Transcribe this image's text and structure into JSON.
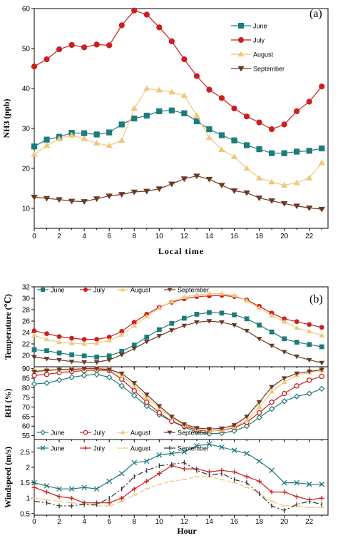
{
  "figure": {
    "panel_a_tag": "(a)",
    "panel_b_tag": "(b)"
  },
  "chart_data": [
    {
      "id": "a",
      "type": "line",
      "xlabel": "Local time",
      "ylabel": "NH3 (ppb)",
      "xlim": [
        0,
        23.5
      ],
      "ylim": [
        5,
        60
      ],
      "xticks": [
        0,
        2,
        4,
        6,
        8,
        10,
        12,
        14,
        16,
        18,
        20,
        22
      ],
      "yticks": [
        10,
        20,
        30,
        40,
        50,
        60
      ],
      "legend_position": "top-right",
      "x": [
        0,
        1,
        2,
        3,
        4,
        5,
        6,
        7,
        8,
        9,
        10,
        11,
        12,
        13,
        14,
        15,
        16,
        17,
        18,
        19,
        20,
        21,
        22,
        23
      ],
      "series": [
        {
          "name": "June",
          "color": "#1e7b7b",
          "marker": "square",
          "values": [
            25.5,
            27.2,
            27.9,
            28.9,
            28.8,
            28.5,
            29.0,
            31.0,
            32.5,
            33.2,
            34.3,
            34.5,
            33.8,
            31.8,
            29.8,
            28.3,
            27.0,
            25.8,
            24.8,
            23.8,
            23.8,
            24.2,
            24.4,
            25.0
          ]
        },
        {
          "name": "July",
          "color": "#cc1f1f",
          "marker": "circle",
          "values": [
            45.5,
            47.3,
            49.8,
            50.9,
            50.3,
            51.0,
            50.8,
            55.8,
            59.5,
            58.5,
            55.3,
            51.8,
            47.3,
            43.1,
            39.7,
            37.6,
            35.0,
            33.0,
            31.5,
            29.8,
            31.0,
            34.3,
            36.7,
            40.5
          ]
        },
        {
          "name": "August",
          "color": "#f0c87a",
          "marker": "triangle-up",
          "values": [
            23.5,
            25.7,
            27.4,
            28.3,
            27.4,
            26.3,
            25.7,
            27.0,
            35.0,
            40.0,
            39.6,
            39.1,
            38.2,
            33.3,
            27.7,
            24.7,
            22.9,
            20.0,
            17.6,
            16.6,
            15.8,
            16.4,
            17.6,
            21.4
          ]
        },
        {
          "name": "September",
          "color": "#6b3a24",
          "marker": "triangle-down",
          "values": [
            12.8,
            12.5,
            12.2,
            11.8,
            11.7,
            12.4,
            13.1,
            13.5,
            14.1,
            14.3,
            14.9,
            16.1,
            17.4,
            18.1,
            17.3,
            15.8,
            14.4,
            13.9,
            12.6,
            11.9,
            11.2,
            10.6,
            10.1,
            9.8
          ]
        }
      ]
    },
    {
      "id": "b1",
      "type": "line",
      "ylabel": "Temperature (℃)",
      "xlim": [
        0,
        23.5
      ],
      "ylim": [
        18,
        32
      ],
      "yticks": [
        20,
        22,
        24,
        26,
        28,
        30,
        32
      ],
      "legend_position": "top",
      "x": [
        0,
        1,
        2,
        3,
        4,
        5,
        6,
        7,
        8,
        9,
        10,
        11,
        12,
        13,
        14,
        15,
        16,
        17,
        18,
        19,
        20,
        21,
        22,
        23
      ],
      "series": [
        {
          "name": "June",
          "color": "#1e7b7b",
          "marker": "square",
          "values": [
            21.0,
            20.8,
            20.4,
            20.1,
            19.9,
            19.7,
            19.9,
            20.7,
            21.8,
            23.2,
            24.5,
            25.6,
            26.5,
            27.2,
            27.5,
            27.4,
            27.1,
            26.4,
            25.3,
            24.1,
            22.9,
            22.3,
            21.9,
            21.5
          ]
        },
        {
          "name": "July",
          "color": "#cc1f1f",
          "marker": "circle",
          "values": [
            24.3,
            23.8,
            23.3,
            23.0,
            22.8,
            22.8,
            23.2,
            24.2,
            25.8,
            27.2,
            28.4,
            29.3,
            29.9,
            30.3,
            30.4,
            30.5,
            30.3,
            29.7,
            28.6,
            27.4,
            26.4,
            25.9,
            25.4,
            24.9
          ]
        },
        {
          "name": "August",
          "color": "#f0c87a",
          "marker": "triangle-up",
          "values": [
            23.5,
            22.8,
            22.3,
            22.1,
            22.0,
            22.1,
            22.6,
            23.6,
            25.2,
            26.8,
            28.3,
            29.4,
            30.2,
            30.6,
            30.8,
            30.8,
            30.5,
            29.6,
            28.3,
            27.0,
            25.9,
            24.8,
            24.2,
            23.5
          ]
        },
        {
          "name": "September",
          "color": "#6b3a24",
          "marker": "triangle-down",
          "values": [
            19.7,
            19.4,
            19.2,
            18.9,
            18.8,
            18.8,
            19.2,
            20.1,
            21.2,
            22.4,
            23.4,
            24.4,
            25.2,
            25.8,
            26.0,
            25.8,
            25.3,
            24.3,
            22.9,
            21.7,
            20.6,
            19.8,
            19.2,
            18.7
          ]
        }
      ]
    },
    {
      "id": "b2",
      "type": "line",
      "ylabel": "RH (%)",
      "xlim": [
        0,
        23.5
      ],
      "ylim": [
        53,
        91
      ],
      "yticks": [
        55,
        60,
        65,
        70,
        75,
        80,
        85,
        90
      ],
      "legend_position": "bottom",
      "x": [
        0,
        1,
        2,
        3,
        4,
        5,
        6,
        7,
        8,
        9,
        10,
        11,
        12,
        13,
        14,
        15,
        16,
        17,
        18,
        19,
        20,
        21,
        22,
        23
      ],
      "series": [
        {
          "name": "June",
          "color": "#1e7b7b",
          "marker": "diamond-open",
          "values": [
            82,
            82.5,
            84,
            85.5,
            86.5,
            87,
            85.5,
            81,
            76,
            70.5,
            66,
            62.5,
            59.5,
            57,
            56,
            56.3,
            57.5,
            60,
            64.5,
            69,
            73,
            75.5,
            77,
            79.5
          ]
        },
        {
          "name": "July",
          "color": "#cc1f1f",
          "marker": "circle-open",
          "values": [
            86.5,
            87,
            88,
            88.5,
            89,
            89.3,
            89,
            84.5,
            78.5,
            72.5,
            67,
            62.5,
            60,
            58,
            57.5,
            57.8,
            59.2,
            62,
            67,
            72.5,
            77,
            81,
            84,
            86
          ]
        },
        {
          "name": "August",
          "color": "#f0c87a",
          "marker": "triangle-up",
          "values": [
            89,
            89.5,
            89.5,
            90,
            90,
            90.5,
            90,
            86.5,
            81,
            75,
            69.5,
            64.5,
            60.5,
            58.5,
            57.5,
            58,
            59.5,
            63,
            70,
            78,
            83,
            86.5,
            88,
            89
          ]
        },
        {
          "name": "September",
          "color": "#6b3a24",
          "marker": "triangle-down",
          "values": [
            88.5,
            89,
            89.5,
            89.5,
            90,
            90,
            89.5,
            87.5,
            82.5,
            76.5,
            70.5,
            65,
            61,
            59,
            58.5,
            58.8,
            60.5,
            65,
            72.5,
            80.5,
            85,
            87.5,
            88.5,
            89.5
          ]
        }
      ]
    },
    {
      "id": "b3",
      "type": "line",
      "xlabel": "Hour",
      "ylabel": "Windspeed (m/s)",
      "xlim": [
        0,
        23.5
      ],
      "ylim": [
        0.45,
        2.9
      ],
      "xticks": [
        0,
        2,
        4,
        6,
        8,
        10,
        12,
        14,
        16,
        18,
        20,
        22
      ],
      "yticks": [
        0.5,
        1.0,
        1.5,
        2.0,
        2.5
      ],
      "legend_position": "top",
      "x": [
        0,
        1,
        2,
        3,
        4,
        5,
        6,
        7,
        8,
        9,
        10,
        11,
        12,
        13,
        14,
        15,
        16,
        17,
        18,
        19,
        20,
        21,
        22,
        23
      ],
      "series": [
        {
          "name": "June",
          "color": "#1e7b7b",
          "marker": "x",
          "values": [
            1.5,
            1.4,
            1.3,
            1.3,
            1.35,
            1.3,
            1.55,
            1.8,
            2.15,
            2.2,
            2.4,
            2.45,
            2.5,
            2.7,
            2.75,
            2.65,
            2.55,
            2.45,
            2.2,
            1.9,
            1.5,
            1.5,
            1.45,
            1.45
          ]
        },
        {
          "name": "July",
          "color": "#cc1f1f",
          "marker": "plus",
          "values": [
            1.35,
            1.2,
            1.05,
            1.0,
            0.85,
            0.85,
            0.85,
            1.0,
            1.3,
            1.55,
            1.8,
            2.05,
            1.95,
            1.95,
            1.85,
            1.9,
            1.85,
            1.7,
            1.55,
            1.2,
            1.2,
            1.05,
            0.95,
            1.0
          ]
        },
        {
          "name": "August",
          "color": "#f0c87a",
          "marker": "dash",
          "values": [
            1.0,
            0.95,
            0.9,
            0.85,
            0.8,
            0.75,
            0.75,
            0.9,
            1.1,
            1.3,
            1.45,
            1.55,
            1.6,
            1.7,
            1.7,
            1.6,
            1.5,
            1.35,
            1.15,
            0.9,
            0.75,
            0.75,
            0.7,
            0.7
          ]
        },
        {
          "name": "September",
          "color": "#333333",
          "marker": "tick",
          "values": [
            0.9,
            0.85,
            0.75,
            0.75,
            0.8,
            0.8,
            1.0,
            1.3,
            1.7,
            1.9,
            2.05,
            2.1,
            2.15,
            1.9,
            1.75,
            1.8,
            1.6,
            1.5,
            1.15,
            0.75,
            0.6,
            0.8,
            0.9,
            0.8
          ]
        }
      ]
    }
  ]
}
